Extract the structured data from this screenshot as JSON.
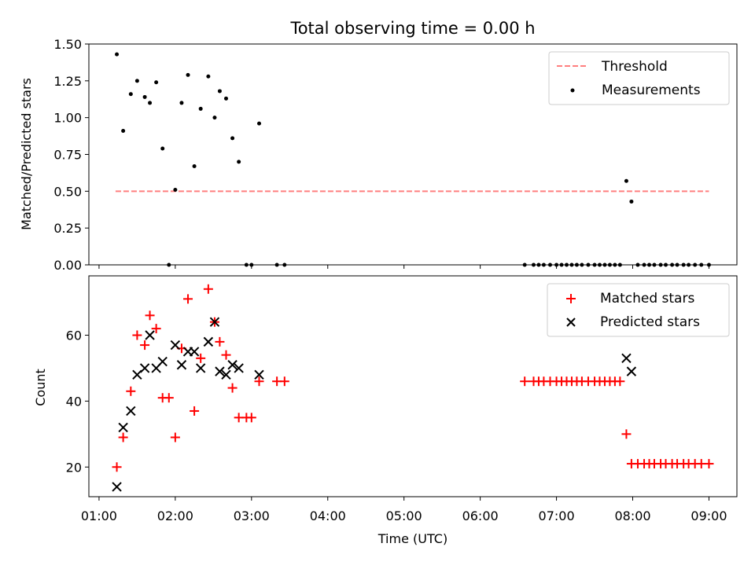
{
  "chart_data": [
    {
      "type": "scatter",
      "title": "Total observing time = 0.00 h",
      "xlabel": "",
      "ylabel": "Matched/Predicted stars",
      "ylim": [
        0,
        1.5
      ],
      "yticks": [
        0,
        0.25,
        0.5,
        0.75,
        1.0,
        1.25,
        1.5
      ],
      "ytick_labels": [
        "0.00",
        "0.25",
        "0.50",
        "0.75",
        "1.00",
        "1.25",
        "1.50"
      ],
      "xlim": [
        "00:52",
        "09:22"
      ],
      "legend": {
        "placement": "top-right",
        "entries": [
          "Threshold",
          "Measurements"
        ]
      },
      "series": [
        {
          "name": "Threshold",
          "style": "dashed-line",
          "color": "#ff7f7f",
          "x": [
            "01:13",
            "09:00"
          ],
          "y": [
            0.5,
            0.5
          ]
        },
        {
          "name": "Measurements",
          "style": "dot",
          "color": "#000000",
          "x": [
            "01:14",
            "01:19",
            "01:25",
            "01:30",
            "01:36",
            "01:40",
            "01:45",
            "01:50",
            "01:55",
            "02:00",
            "02:05",
            "02:10",
            "02:15",
            "02:20",
            "02:26",
            "02:31",
            "02:35",
            "02:40",
            "02:45",
            "02:50",
            "02:56",
            "03:00",
            "03:06",
            "03:20",
            "03:26",
            "06:35",
            "06:42",
            "06:46",
            "06:50",
            "06:55",
            "07:00",
            "07:04",
            "07:08",
            "07:12",
            "07:16",
            "07:20",
            "07:25",
            "07:30",
            "07:34",
            "07:38",
            "07:42",
            "07:46",
            "07:50",
            "07:55",
            "07:59",
            "08:04",
            "08:09",
            "08:13",
            "08:17",
            "08:22",
            "08:26",
            "08:31",
            "08:35",
            "08:40",
            "08:44",
            "08:49",
            "08:54",
            "09:00"
          ],
          "y": [
            1.43,
            0.91,
            1.16,
            1.25,
            1.14,
            1.1,
            1.24,
            0.79,
            0.0,
            0.51,
            1.1,
            1.29,
            0.67,
            1.06,
            1.28,
            1.0,
            1.18,
            1.13,
            0.86,
            0.7,
            0.0,
            0.0,
            0.96,
            0.0,
            0.0,
            0.0,
            0.0,
            0.0,
            0.0,
            0.0,
            0.0,
            0.0,
            0.0,
            0.0,
            0.0,
            0.0,
            0.0,
            0.0,
            0.0,
            0.0,
            0.0,
            0.0,
            0.0,
            0.57,
            0.43,
            0.0,
            0.0,
            0.0,
            0.0,
            0.0,
            0.0,
            0.0,
            0.0,
            0.0,
            0.0,
            0.0,
            0.0,
            0.0
          ]
        }
      ]
    },
    {
      "type": "scatter",
      "title": "",
      "xlabel": "Time (UTC)",
      "ylabel": "Count",
      "ylim": [
        11,
        78
      ],
      "yticks": [
        20,
        40,
        60
      ],
      "ytick_labels": [
        "20",
        "40",
        "60"
      ],
      "xlim": [
        "00:52",
        "09:22"
      ],
      "xticks": [
        "01:00",
        "02:00",
        "03:00",
        "04:00",
        "05:00",
        "06:00",
        "07:00",
        "08:00",
        "09:00"
      ],
      "legend": {
        "placement": "top-right",
        "entries": [
          "Matched stars",
          "Predicted stars"
        ]
      },
      "series": [
        {
          "name": "Matched stars",
          "marker": "plus",
          "color": "#ff0000",
          "x": [
            "01:14",
            "01:19",
            "01:25",
            "01:30",
            "01:36",
            "01:40",
            "01:45",
            "01:50",
            "01:55",
            "02:00",
            "02:05",
            "02:10",
            "02:15",
            "02:20",
            "02:26",
            "02:31",
            "02:35",
            "02:40",
            "02:45",
            "02:50",
            "02:56",
            "03:00",
            "03:06",
            "03:20",
            "03:26",
            "06:35",
            "06:42",
            "06:46",
            "06:50",
            "06:55",
            "07:00",
            "07:04",
            "07:08",
            "07:12",
            "07:16",
            "07:20",
            "07:25",
            "07:30",
            "07:34",
            "07:38",
            "07:42",
            "07:46",
            "07:50",
            "07:55",
            "07:59",
            "08:04",
            "08:09",
            "08:13",
            "08:17",
            "08:22",
            "08:26",
            "08:31",
            "08:35",
            "08:40",
            "08:44",
            "08:49",
            "08:54",
            "09:00"
          ],
          "y": [
            20,
            29,
            43,
            60,
            57,
            66,
            62,
            41,
            41,
            29,
            56,
            71,
            37,
            53,
            74,
            64,
            58,
            54,
            44,
            35,
            35,
            35,
            46,
            46,
            46,
            46,
            46,
            46,
            46,
            46,
            46,
            46,
            46,
            46,
            46,
            46,
            46,
            46,
            46,
            46,
            46,
            46,
            46,
            30,
            21,
            21,
            21,
            21,
            21,
            21,
            21,
            21,
            21,
            21,
            21,
            21,
            21,
            21
          ]
        },
        {
          "name": "Predicted stars",
          "marker": "x",
          "color": "#000000",
          "x": [
            "01:14",
            "01:19",
            "01:25",
            "01:30",
            "01:36",
            "01:40",
            "01:45",
            "01:50",
            "02:00",
            "02:05",
            "02:10",
            "02:15",
            "02:20",
            "02:26",
            "02:31",
            "02:35",
            "02:40",
            "02:45",
            "02:50",
            "03:06",
            "07:55",
            "07:59"
          ],
          "y": [
            14,
            32,
            37,
            48,
            50,
            60,
            50,
            52,
            57,
            51,
            55,
            55,
            50,
            58,
            64,
            49,
            48,
            51,
            50,
            48,
            53,
            49
          ]
        }
      ]
    }
  ]
}
